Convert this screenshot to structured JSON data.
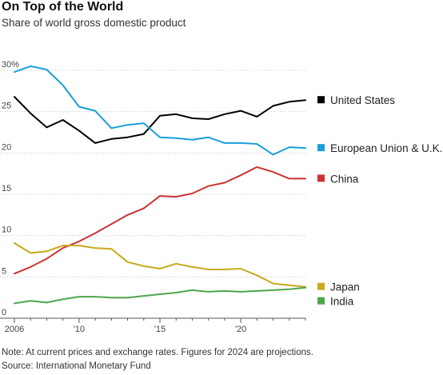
{
  "header": {
    "title": "On Top of the World",
    "subtitle": "Share of world gross domestic product"
  },
  "footer": {
    "note": "Note: At current prices and exchange rates. Figures for 2024 are projections.",
    "source": "Source: International Monetary Fund"
  },
  "chart_data": {
    "type": "line",
    "title": "On Top of the World",
    "subtitle": "Share of world gross domestic product",
    "xlabel": "",
    "ylabel": "",
    "xlim": [
      2006,
      2024
    ],
    "ylim": [
      0,
      30
    ],
    "x_ticks": [
      2006,
      2010,
      2015,
      2020
    ],
    "x_tick_labels": [
      "2006",
      "'10",
      "'15",
      "'20"
    ],
    "y_ticks": [
      0,
      5,
      10,
      15,
      20,
      25,
      30
    ],
    "y_tick_labels": [
      "0",
      "5",
      "10",
      "15",
      "20",
      "25",
      "30%"
    ],
    "grid": "horizontal",
    "legend_placement": "right, at line ends",
    "x": [
      2006,
      2007,
      2008,
      2009,
      2010,
      2011,
      2012,
      2013,
      2014,
      2015,
      2016,
      2017,
      2018,
      2019,
      2020,
      2021,
      2022,
      2023,
      2024
    ],
    "series": [
      {
        "name": "United States",
        "color": "#000000",
        "values": [
          26.8,
          24.8,
          23.1,
          24.0,
          22.7,
          21.2,
          21.7,
          21.9,
          22.3,
          24.5,
          24.7,
          24.2,
          24.1,
          24.7,
          25.1,
          24.4,
          25.7,
          26.2,
          26.4
        ]
      },
      {
        "name": "European Union & U.K.",
        "color": "#1a9fd9",
        "values": [
          29.8,
          30.5,
          30.1,
          28.2,
          25.6,
          25.1,
          23.0,
          23.4,
          23.6,
          21.9,
          21.8,
          21.6,
          21.9,
          21.2,
          21.2,
          21.1,
          19.8,
          20.7,
          20.6
        ]
      },
      {
        "name": "China",
        "color": "#cc3333",
        "values": [
          5.4,
          6.2,
          7.2,
          8.5,
          9.3,
          10.3,
          11.4,
          12.5,
          13.3,
          14.8,
          14.7,
          15.1,
          16.0,
          16.4,
          17.3,
          18.3,
          17.7,
          16.9,
          16.9
        ]
      },
      {
        "name": "Japan",
        "color": "#c8a91c",
        "values": [
          9.1,
          7.9,
          8.1,
          8.8,
          8.8,
          8.5,
          8.4,
          6.8,
          6.3,
          6.0,
          6.6,
          6.2,
          5.9,
          5.9,
          6.0,
          5.2,
          4.2,
          4.0,
          3.8
        ]
      },
      {
        "name": "India",
        "color": "#4ca64c",
        "values": [
          1.8,
          2.1,
          1.9,
          2.3,
          2.6,
          2.6,
          2.5,
          2.5,
          2.7,
          2.9,
          3.1,
          3.4,
          3.2,
          3.3,
          3.2,
          3.3,
          3.4,
          3.5,
          3.7
        ]
      }
    ]
  }
}
